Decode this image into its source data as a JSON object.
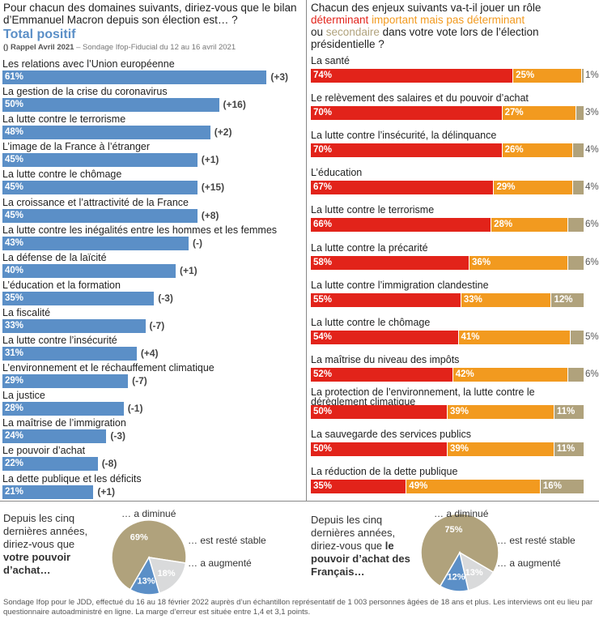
{
  "left": {
    "title": "Pour chacun des domaines suivants, diriez-vous que le bilan d’Emmanuel Macron depuis son élection est… ?",
    "subtitle": "Total positif",
    "ref_bold": "() Rappel Avril 2021",
    "ref_rest": " – Sondage Ifop-Fiducial du 12 au 16 avril 2021"
  },
  "right": {
    "title_1": "Chacun des enjeux suivants va-t-il jouer un rôle",
    "title_red": "déterminant",
    "title_orange": "important mais pas déterminant",
    "title_ou": "ou",
    "title_tan": "secondaire",
    "title_2": "dans votre vote lors de l’élection présidentielle ?"
  },
  "chart_data": [
    {
      "type": "bar",
      "title": "Total positif",
      "categories": [
        "Les relations avec l’Union européenne",
        "La gestion de la crise du coronavirus",
        "La lutte contre le terrorisme",
        "L’image de la France à l’étranger",
        "La lutte contre le chômage",
        "La croissance et l’attractivité de la France",
        "La lutte contre les inégalités entre les hommes et les femmes",
        "La défense de la laïcité",
        "L’éducation et la formation",
        "La fiscalité",
        "La lutte contre l’insécurité",
        "L’environnement et le réchauffement climatique",
        "La justice",
        "La maîtrise de l’immigration",
        "Le pouvoir d’achat",
        "La dette publique et les déficits"
      ],
      "values": [
        61,
        50,
        48,
        45,
        45,
        45,
        43,
        40,
        35,
        33,
        31,
        29,
        28,
        24,
        22,
        21
      ],
      "value_labels": [
        "61%",
        "50%",
        "48%",
        "45%",
        "45%",
        "45%",
        "43%",
        "40%",
        "35%",
        "33%",
        "31%",
        "29%",
        "28%",
        "24%",
        "22%",
        "21%"
      ],
      "deltas": [
        "(+3)",
        "(+16)",
        "(+2)",
        "(+1)",
        "(+15)",
        "(+8)",
        "(-)",
        "(+1)",
        "(-3)",
        "(-7)",
        "(+4)",
        "(-7)",
        "(-1)",
        "(-3)",
        "(-8)",
        "(+1)"
      ],
      "color": "#5b8fc7"
    },
    {
      "type": "bar",
      "stacked": true,
      "categories": [
        "La santé",
        "Le relèvement des salaires et du pouvoir d’achat",
        "La lutte contre l’insécurité, la délinquance",
        "L’éducation",
        "La lutte contre le terrorisme",
        "La lutte contre la précarité",
        "La lutte contre l’immigration clandestine",
        "La lutte contre le chômage",
        "La maîtrise du niveau des impôts",
        "La protection de l’environnement, la lutte contre le dérèglement climatique",
        "La sauvegarde des services publics",
        "La réduction de la dette publique"
      ],
      "series": [
        {
          "name": "déterminant",
          "color": "#e2231a",
          "values": [
            74,
            70,
            70,
            67,
            66,
            58,
            55,
            54,
            52,
            50,
            50,
            35
          ],
          "labels": [
            "74%",
            "70%",
            "70%",
            "67%",
            "66%",
            "58%",
            "55%",
            "54%",
            "52%",
            "50%",
            "50%",
            "35%"
          ]
        },
        {
          "name": "important mais pas déterminant",
          "color": "#f29a1f",
          "values": [
            25,
            27,
            26,
            29,
            28,
            36,
            33,
            41,
            42,
            39,
            39,
            49
          ],
          "labels": [
            "25%",
            "27%",
            "26%",
            "29%",
            "28%",
            "36%",
            "33%",
            "41%",
            "42%",
            "39%",
            "39%",
            "49%"
          ]
        },
        {
          "name": "secondaire",
          "color": "#b0a27c",
          "values": [
            1,
            3,
            4,
            4,
            6,
            6,
            12,
            5,
            6,
            11,
            11,
            16
          ],
          "labels": [
            "1%",
            "3%",
            "4%",
            "4%",
            "6%",
            "6%",
            "12%",
            "5%",
            "6%",
            "11%",
            "11%",
            "16%"
          ]
        }
      ]
    },
    {
      "type": "pie",
      "question_1": "Depuis les cinq dernières années, diriez-vous que",
      "question_2": "votre pouvoir d’achat…",
      "labels": [
        "… a diminué",
        "… est resté stable",
        "… a augmenté"
      ],
      "values": [
        69,
        18,
        13
      ],
      "value_labels": [
        "69%",
        "18%",
        "13%"
      ],
      "colors": [
        "#b0a27c",
        "#d9dadb",
        "#5b8fc7"
      ]
    },
    {
      "type": "pie",
      "question_1": "Depuis les cinq dernières années, diriez-vous que",
      "question_2": "le pouvoir d’achat des Français…",
      "labels": [
        "… a diminué",
        "… est resté stable",
        "… a augmenté"
      ],
      "values": [
        75,
        13,
        12
      ],
      "value_labels": [
        "75%",
        "13%",
        "12%"
      ],
      "colors": [
        "#b0a27c",
        "#d9dadb",
        "#5b8fc7"
      ]
    }
  ],
  "footnote": "Sondage Ifop pour le JDD, effectué du 16 au 18 février 2022 auprès d’un échantillon représentatif de 1 003 personnes âgées de 18 ans et plus. Les interviews ont eu lieu par questionnaire autoadministré en ligne. La marge d’erreur est située entre 1,4 et 3,1 points."
}
